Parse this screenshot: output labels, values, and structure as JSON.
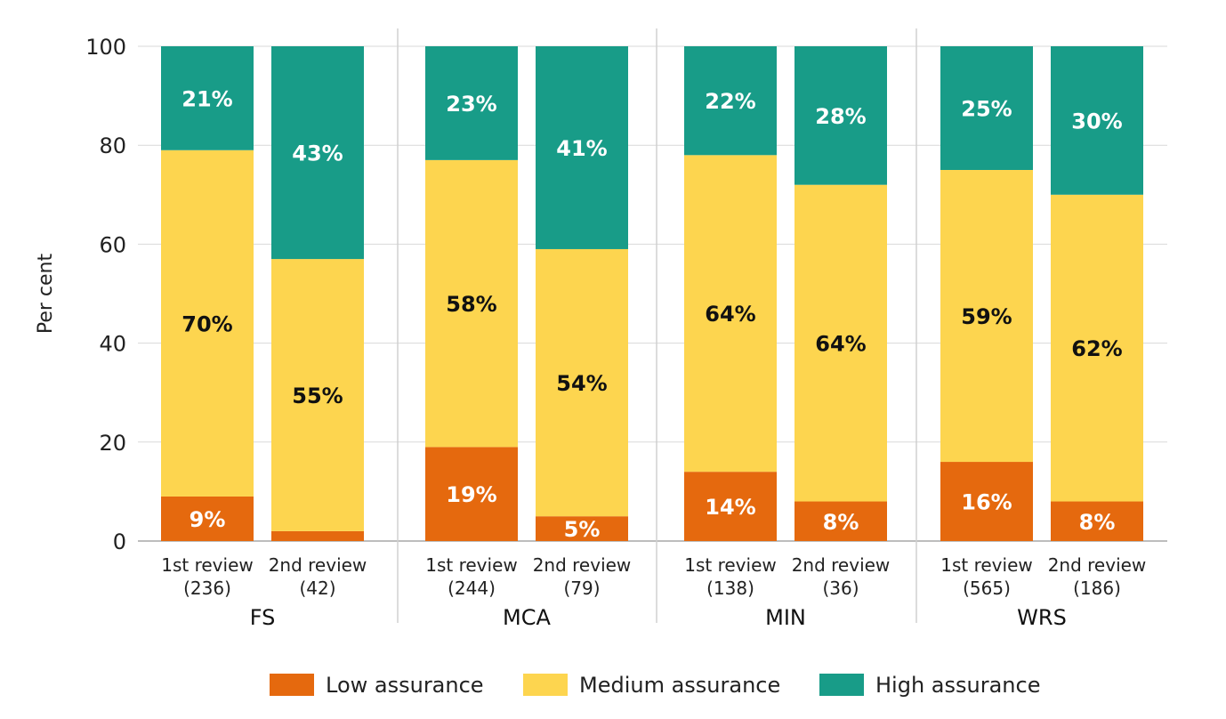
{
  "chart_data": {
    "type": "bar",
    "stacked": true,
    "ylabel": "Per cent",
    "ylim": [
      0,
      100
    ],
    "yticks": [
      0,
      20,
      40,
      60,
      80,
      100
    ],
    "grid": true,
    "legend_position": "bottom",
    "groups": [
      {
        "name": "FS",
        "categories": [
          {
            "label": "1st review",
            "n": "(236)"
          },
          {
            "label": "2nd review",
            "n": "(42)"
          }
        ]
      },
      {
        "name": "MCA",
        "categories": [
          {
            "label": "1st review",
            "n": "(244)"
          },
          {
            "label": "2nd review",
            "n": "(79)"
          }
        ]
      },
      {
        "name": "MIN",
        "categories": [
          {
            "label": "1st review",
            "n": "(138)"
          },
          {
            "label": "2nd review",
            "n": "(36)"
          }
        ]
      },
      {
        "name": "WRS",
        "categories": [
          {
            "label": "1st review",
            "n": "(565)"
          },
          {
            "label": "2nd review",
            "n": "(186)"
          }
        ]
      }
    ],
    "series": [
      {
        "name": "Low assurance",
        "color": "#E5690E",
        "values": [
          9,
          2,
          19,
          5,
          14,
          8,
          16,
          8
        ]
      },
      {
        "name": "Medium assurance",
        "color": "#FDD54F",
        "values": [
          70,
          55,
          58,
          54,
          64,
          64,
          59,
          62
        ]
      },
      {
        "name": "High assurance",
        "color": "#189C88",
        "values": [
          21,
          43,
          23,
          41,
          22,
          28,
          25,
          30
        ]
      }
    ]
  }
}
